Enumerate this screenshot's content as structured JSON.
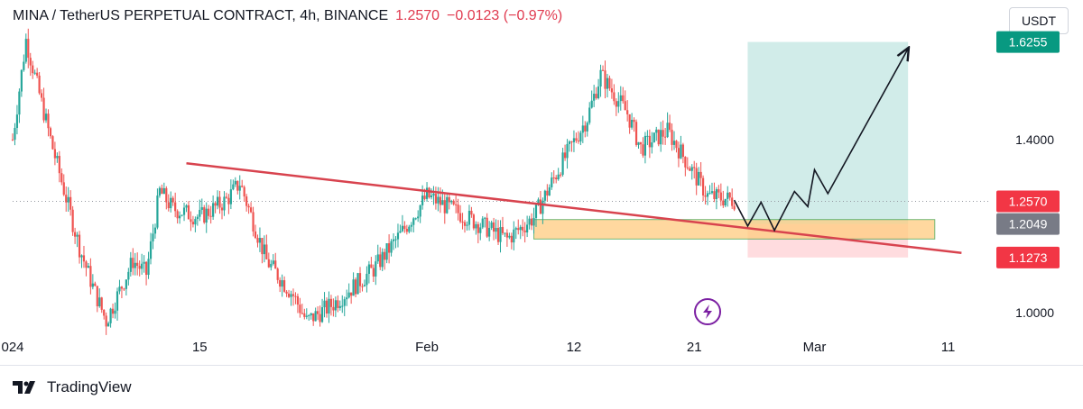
{
  "header": {
    "symbol": "MINA / TetherUS PERPETUAL CONTRACT, 4h, BINANCE",
    "price": "1.2570",
    "change": "−0.0123 (−0.97%)"
  },
  "currency_button": {
    "label": "USDT"
  },
  "branding": {
    "label": "TradingView"
  },
  "colors": {
    "up": "#26a69a",
    "down": "#ef5350",
    "trendline": "#d8434e",
    "zone_fill": "#ffcc80",
    "zone_border": "#43a047",
    "target_zone": "#b2dfdb",
    "stop_zone": "#ffcdd2",
    "target_badge": "#089981",
    "stop_badge": "#f23645",
    "mid_badge": "#787b86",
    "event_icon": "#7b1fa2"
  },
  "chart_data": {
    "type": "candlestick",
    "x_unit": "date (2024)",
    "xlim": [
      "2024-01-01",
      "2024-03-14"
    ],
    "ylim": [
      0.9,
      1.66
    ],
    "grid": false,
    "x_ticks": [
      {
        "label": "024",
        "date": "2024-01-01"
      },
      {
        "label": "15",
        "date": "2024-01-15"
      },
      {
        "label": "Feb",
        "date": "2024-02-01"
      },
      {
        "label": "12",
        "date": "2024-02-12"
      },
      {
        "label": "21",
        "date": "2024-02-21"
      },
      {
        "label": "Mar",
        "date": "2024-03-01"
      },
      {
        "label": "11",
        "date": "2024-03-11"
      }
    ],
    "y_ticks": [
      {
        "label": "1.4000",
        "value": 1.4
      },
      {
        "label": "1.0000",
        "value": 1.0
      }
    ],
    "price_badges": [
      {
        "label": "1.6255",
        "value": 1.6255,
        "color": "#089981"
      },
      {
        "label": "1.2570",
        "value": 1.257,
        "color": "#f23645"
      },
      {
        "label": "1.2049",
        "value": 1.2049,
        "color": "#787b86"
      },
      {
        "label": "1.1273",
        "value": 1.1273,
        "color": "#f23645"
      }
    ],
    "last_price": 1.257,
    "price_path": [
      {
        "date": "2024-01-01",
        "price": 1.4
      },
      {
        "date": "2024-01-02",
        "price": 1.63
      },
      {
        "date": "2024-01-04",
        "price": 1.38
      },
      {
        "date": "2024-01-06",
        "price": 1.15
      },
      {
        "date": "2024-01-07",
        "price": 1.06
      },
      {
        "date": "2024-01-08",
        "price": 0.98
      },
      {
        "date": "2024-01-10",
        "price": 1.12
      },
      {
        "date": "2024-01-11",
        "price": 1.09
      },
      {
        "date": "2024-01-12",
        "price": 1.28
      },
      {
        "date": "2024-01-13",
        "price": 1.24
      },
      {
        "date": "2024-01-15",
        "price": 1.22
      },
      {
        "date": "2024-01-17",
        "price": 1.26
      },
      {
        "date": "2024-01-18",
        "price": 1.3
      },
      {
        "date": "2024-01-20",
        "price": 1.12
      },
      {
        "date": "2024-01-22",
        "price": 1.04
      },
      {
        "date": "2024-01-23",
        "price": 0.98
      },
      {
        "date": "2024-01-25",
        "price": 1.02
      },
      {
        "date": "2024-01-28",
        "price": 1.1
      },
      {
        "date": "2024-01-30",
        "price": 1.18
      },
      {
        "date": "2024-02-01",
        "price": 1.27
      },
      {
        "date": "2024-02-04",
        "price": 1.22
      },
      {
        "date": "2024-02-07",
        "price": 1.17
      },
      {
        "date": "2024-02-09",
        "price": 1.22
      },
      {
        "date": "2024-02-11",
        "price": 1.34
      },
      {
        "date": "2024-02-13",
        "price": 1.45
      },
      {
        "date": "2024-02-14",
        "price": 1.55
      },
      {
        "date": "2024-02-16",
        "price": 1.46
      },
      {
        "date": "2024-02-17",
        "price": 1.38
      },
      {
        "date": "2024-02-19",
        "price": 1.42
      },
      {
        "date": "2024-02-21",
        "price": 1.32
      },
      {
        "date": "2024-02-22",
        "price": 1.27
      },
      {
        "date": "2024-02-24",
        "price": 1.26
      }
    ],
    "trendline": {
      "from": {
        "date": "2024-01-14",
        "price": 1.345
      },
      "to": {
        "date": "2024-03-12",
        "price": 1.138
      }
    },
    "demand_zone": {
      "from": "2024-02-09",
      "to": "2024-03-10",
      "low": 1.17,
      "high": 1.215
    },
    "position": {
      "from": "2024-02-25",
      "to": "2024-03-08",
      "entry": 1.2049,
      "target": 1.6255,
      "stop": 1.1273
    },
    "projection_path": [
      {
        "date": "2024-02-24",
        "price": 1.26
      },
      {
        "date": "2024-02-25",
        "price": 1.2
      },
      {
        "date": "2024-02-26",
        "price": 1.255
      },
      {
        "date": "2024-02-27",
        "price": 1.19
      },
      {
        "date": "2024-02-28.5",
        "price": 1.28
      },
      {
        "date": "2024-02-29.5",
        "price": 1.245
      },
      {
        "date": "2024-03-01",
        "price": 1.33
      },
      {
        "date": "2024-03-02",
        "price": 1.275
      },
      {
        "date": "2024-03-08",
        "price": 1.61
      }
    ],
    "event_marker": {
      "date": "2024-02-22"
    }
  }
}
